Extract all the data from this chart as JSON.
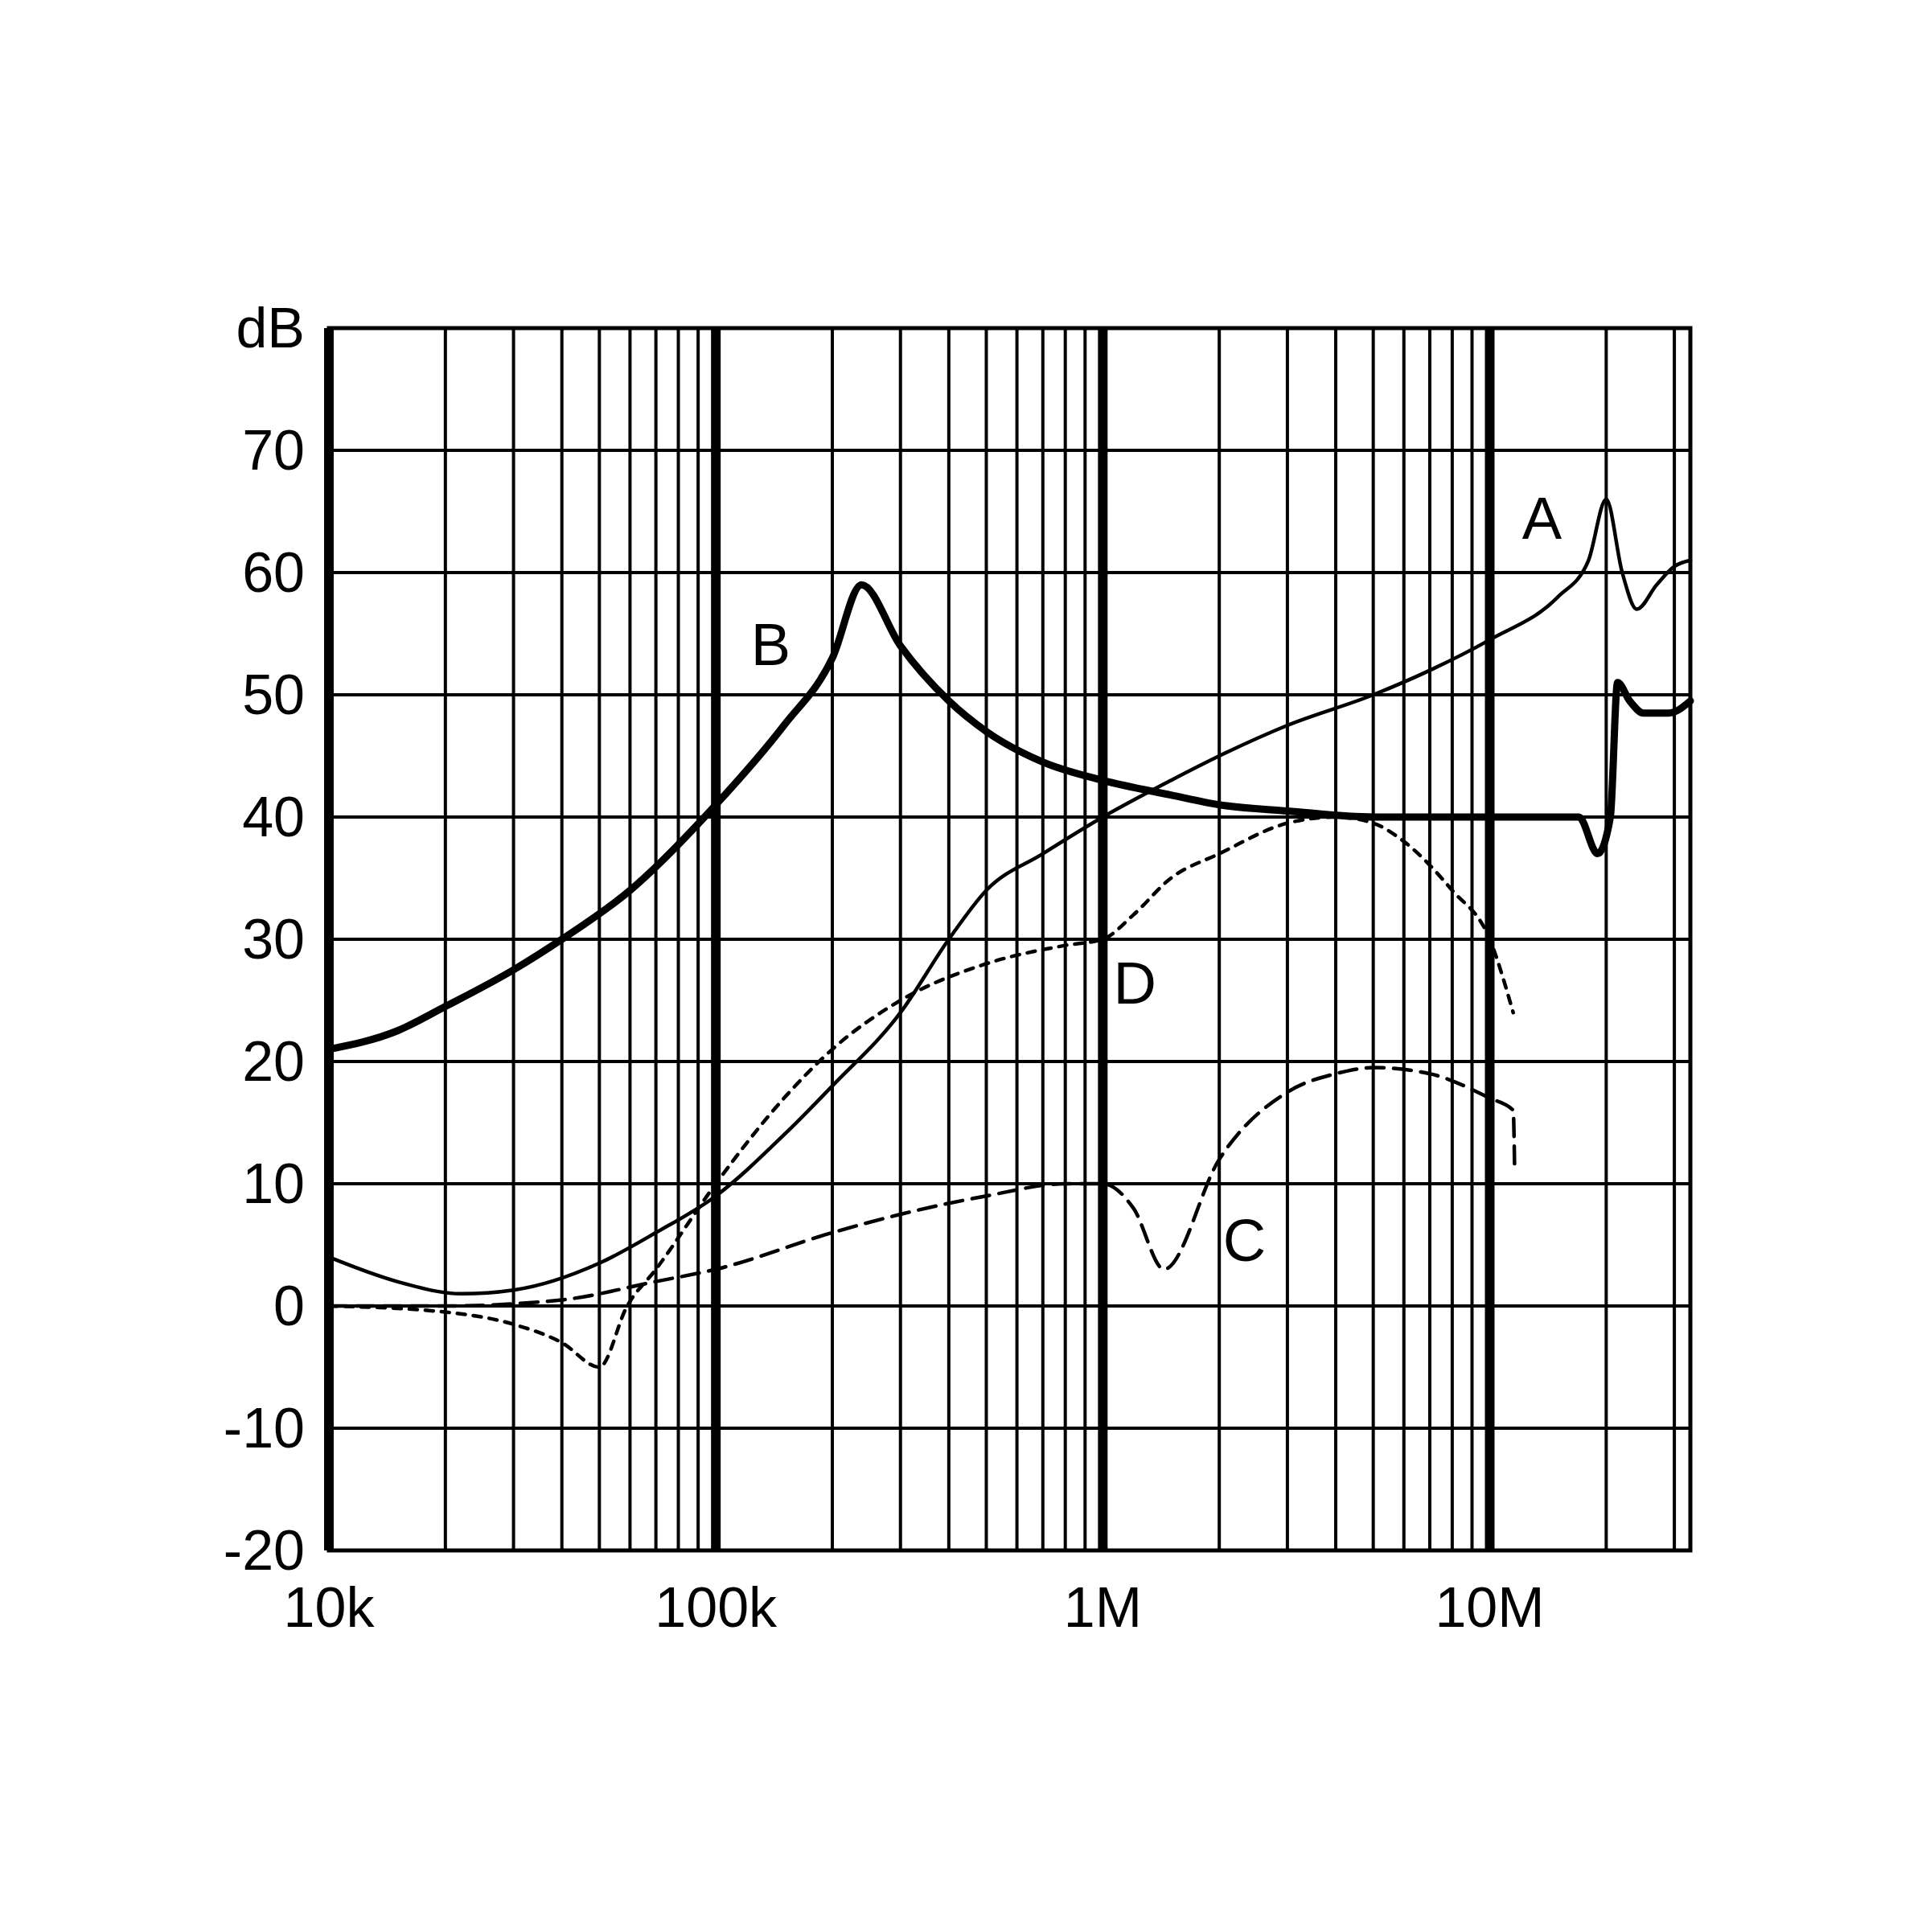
{
  "chart_data": {
    "type": "line",
    "ylabel": "dB",
    "log": "x",
    "grid": true,
    "xlim": [
      10000,
      33000000
    ],
    "ylim": [
      -20,
      80
    ],
    "yticks": [
      -20,
      -10,
      0,
      10,
      20,
      30,
      40,
      50,
      60,
      70
    ],
    "xticks": [
      {
        "value": 10000,
        "label": "10k"
      },
      {
        "value": 20000,
        "label": null
      },
      {
        "value": 30000,
        "label": null
      },
      {
        "value": 40000,
        "label": null
      },
      {
        "value": 50000,
        "label": null
      },
      {
        "value": 60000,
        "label": null
      },
      {
        "value": 70000,
        "label": null
      },
      {
        "value": 80000,
        "label": null
      },
      {
        "value": 90000,
        "label": null
      },
      {
        "value": 100000,
        "label": "100k"
      },
      {
        "value": 200000,
        "label": null
      },
      {
        "value": 300000,
        "label": null
      },
      {
        "value": 400000,
        "label": null
      },
      {
        "value": 500000,
        "label": null
      },
      {
        "value": 600000,
        "label": null
      },
      {
        "value": 700000,
        "label": null
      },
      {
        "value": 800000,
        "label": null
      },
      {
        "value": 900000,
        "label": null
      },
      {
        "value": 1000000,
        "label": "1M"
      },
      {
        "value": 2000000,
        "label": null
      },
      {
        "value": 3000000,
        "label": null
      },
      {
        "value": 4000000,
        "label": null
      },
      {
        "value": 5000000,
        "label": null
      },
      {
        "value": 6000000,
        "label": null
      },
      {
        "value": 7000000,
        "label": null
      },
      {
        "value": 8000000,
        "label": null
      },
      {
        "value": 9000000,
        "label": null
      },
      {
        "value": 10000000,
        "label": "10M"
      },
      {
        "value": 20000000,
        "label": null
      },
      {
        "value": 30000000,
        "label": null
      }
    ],
    "series": [
      {
        "name": "A",
        "color": "#000000",
        "line_style": "solid",
        "x": [
          10000,
          15000,
          22000,
          30000,
          50000,
          70000,
          100000,
          150000,
          200000,
          300000,
          400000,
          500000,
          700000,
          1000000,
          1500000,
          2000000,
          3000000,
          5000000,
          7000000,
          10000000,
          15000000,
          18000000,
          20000000,
          22000000,
          24000000,
          27000000,
          30000000,
          33000000
        ],
        "values": [
          4,
          2,
          1,
          1.3,
          3.5,
          6,
          9,
          14,
          18,
          24,
          30,
          34,
          37,
          40,
          43,
          45,
          47.5,
          50,
          52,
          54.5,
          58,
          61,
          66,
          60,
          57,
          59,
          60.5,
          61
        ]
      },
      {
        "name": "B",
        "color": "#000000",
        "line_style": "solid",
        "x": [
          10000,
          15000,
          20000,
          30000,
          40000,
          60000,
          100000,
          150000,
          200000,
          238000,
          300000,
          400000,
          500000,
          700000,
          1000000,
          1500000,
          2000000,
          3000000,
          5000000,
          10000000,
          17000000,
          19000000,
          20500000,
          21400000,
          23000000,
          25000000,
          29000000,
          33000000
        ],
        "values": [
          21,
          22.5,
          24.5,
          27.5,
          30,
          34,
          41,
          47.5,
          53,
          59,
          54,
          49.5,
          47,
          44.5,
          43,
          41.8,
          41,
          40.5,
          40,
          40,
          40,
          37,
          40,
          51,
          49.5,
          48.5,
          48.5,
          49.5
        ]
      },
      {
        "name": "C",
        "color": "#000000",
        "line_style": "dashed",
        "x": [
          10000,
          20000,
          40000,
          70000,
          100000,
          200000,
          300000,
          500000,
          800000,
          1000000,
          1200000,
          1440000,
          2000000,
          3000000,
          4000000,
          5000000,
          7000000,
          10000000,
          11500000,
          11600000
        ],
        "values": [
          0,
          0,
          0.5,
          2,
          3,
          6,
          7.5,
          9,
          10,
          10,
          8,
          3,
          12,
          17.5,
          19,
          19.5,
          19,
          17,
          16,
          11
        ]
      },
      {
        "name": "D",
        "color": "#000000",
        "line_style": "dotted",
        "x": [
          10000,
          20000,
          30000,
          40000,
          50000,
          59000,
          70000,
          100000,
          150000,
          200000,
          300000,
          500000,
          800000,
          1000000,
          1200000,
          1500000,
          2000000,
          3000000,
          4000000,
          5000000,
          6000000,
          8000000,
          10000000,
          11500000
        ],
        "values": [
          0,
          -0.5,
          -1.5,
          -3,
          -5,
          0,
          3,
          10,
          17,
          21,
          25,
          28,
          29.5,
          30,
          32,
          35,
          37,
          39.5,
          40,
          39.5,
          38,
          34,
          30,
          24
        ]
      }
    ]
  }
}
